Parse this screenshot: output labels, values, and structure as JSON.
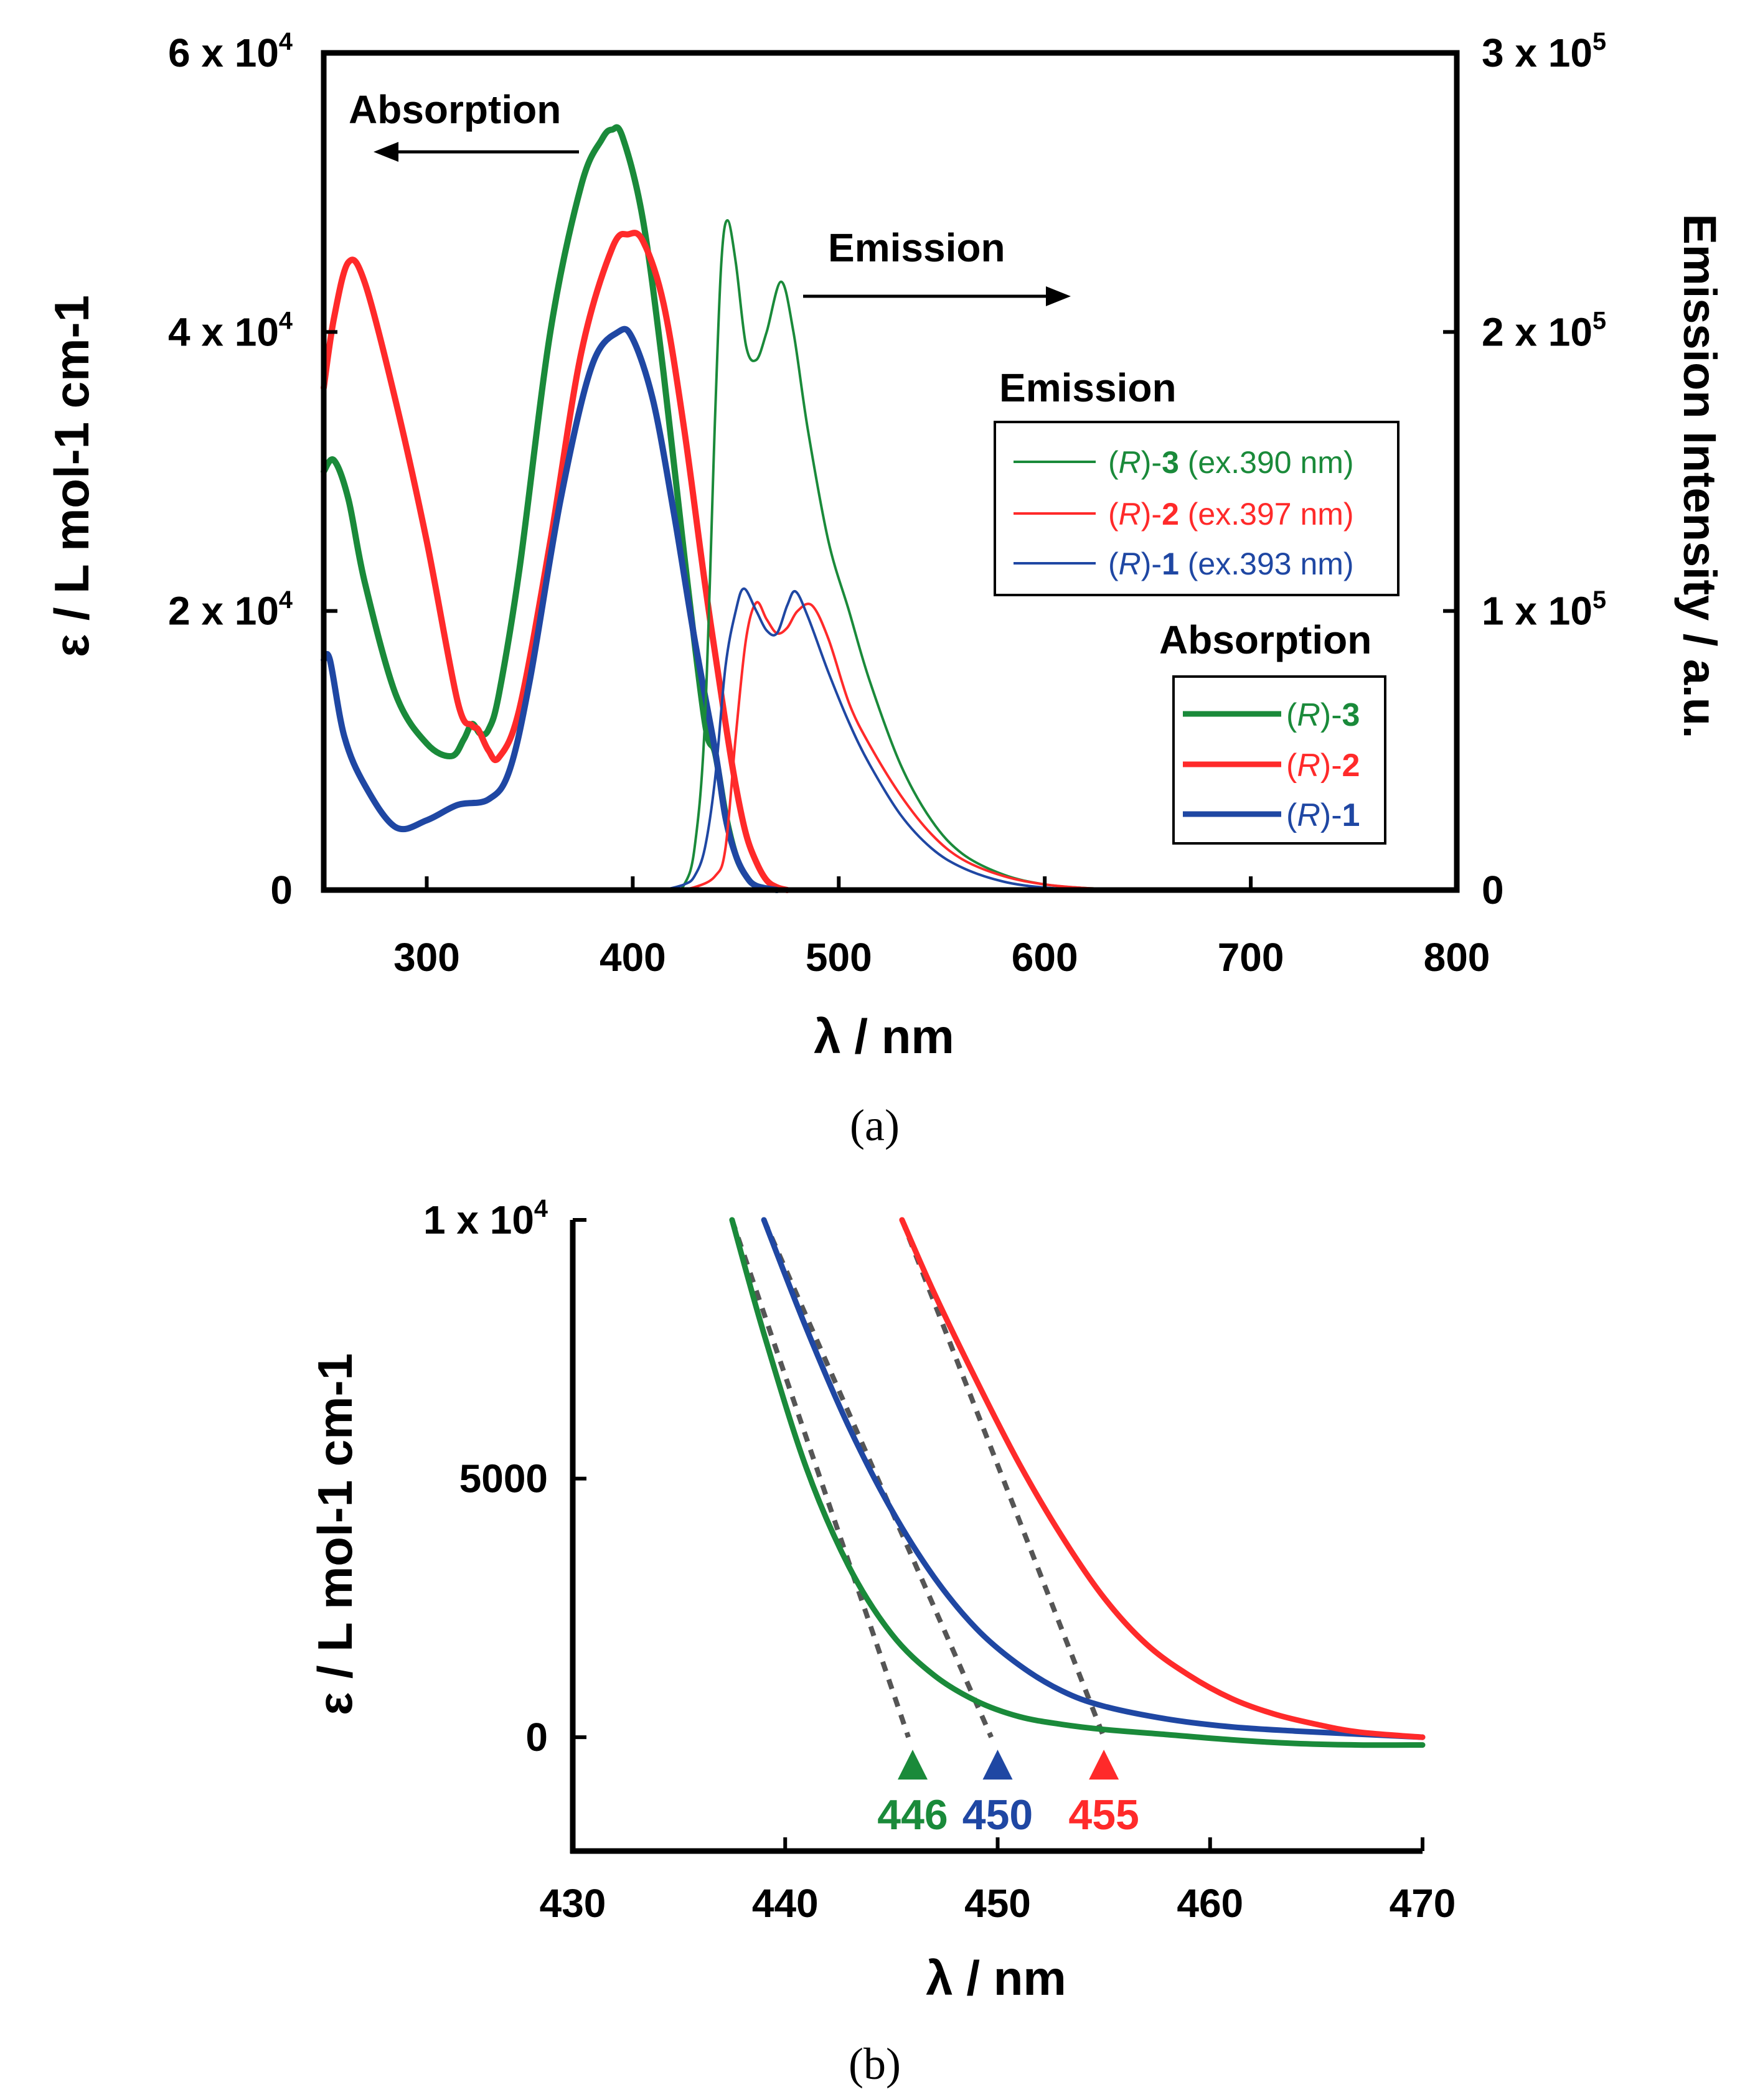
{
  "chart_data": [
    {
      "panel_label": "(a)",
      "type": "line",
      "xlabel": "λ  / nm",
      "ylabel_left": "ε / L mol-1 cm-1",
      "ylabel_right": "Emission Intensity / a.u.",
      "xlim": [
        250,
        800
      ],
      "ylim_left": [
        0,
        60000
      ],
      "ylim_right": [
        0,
        300000
      ],
      "x_ticks": [
        300,
        400,
        500,
        600,
        700,
        800
      ],
      "x_tick_labels": [
        "300",
        "400",
        "500",
        "600",
        "700",
        "800"
      ],
      "y_left_ticks": [
        0,
        20000,
        40000,
        60000
      ],
      "y_left_tick_labels": [
        {
          "base": "0",
          "exp": ""
        },
        {
          "base": "2 x 10",
          "exp": "4"
        },
        {
          "base": "4 x 10",
          "exp": "4"
        },
        {
          "base": "6 x 10",
          "exp": "4"
        }
      ],
      "y_right_ticks": [
        0,
        100000,
        200000,
        300000
      ],
      "y_right_tick_labels": [
        {
          "base": "0",
          "exp": ""
        },
        {
          "base": "1 x 10",
          "exp": "5"
        },
        {
          "base": "2 x 10",
          "exp": "5"
        },
        {
          "base": "3 x 10",
          "exp": "5"
        }
      ],
      "annotations": {
        "absorption_arrow": "Absorption",
        "emission_arrow": "Emission"
      },
      "absorption_series": [
        {
          "name": "(R)-3",
          "color": "#1a8a3a",
          "x": [
            250,
            255,
            262,
            270,
            285,
            300,
            312,
            318,
            322,
            326,
            330,
            335,
            345,
            360,
            375,
            385,
            390,
            395,
            405,
            415,
            425,
            435,
            440,
            445,
            450,
            455,
            460,
            470
          ],
          "y": [
            30000,
            30800,
            28000,
            22000,
            14000,
            10500,
            9600,
            10800,
            11900,
            11200,
            11500,
            14000,
            23000,
            40000,
            50500,
            53800,
            54500,
            54000,
            48000,
            37000,
            24000,
            12000,
            9800,
            5500,
            2500,
            1000,
            300,
            0
          ]
        },
        {
          "name": "(R)-2",
          "color": "#ff2a2a",
          "x": [
            250,
            255,
            262,
            270,
            285,
            300,
            315,
            322,
            325,
            330,
            335,
            345,
            360,
            375,
            390,
            398,
            405,
            415,
            425,
            435,
            445,
            450,
            455,
            460,
            465,
            470,
            475
          ],
          "y": [
            36000,
            41000,
            45000,
            43500,
            35000,
            25000,
            13500,
            11800,
            11500,
            10000,
            9500,
            13000,
            25000,
            38500,
            46000,
            47000,
            46500,
            42000,
            33000,
            22000,
            12000,
            7500,
            4000,
            2000,
            700,
            200,
            0
          ]
        },
        {
          "name": "(R)-1",
          "color": "#1f47a3",
          "x": [
            250,
            253,
            260,
            270,
            285,
            300,
            315,
            330,
            340,
            350,
            365,
            380,
            393,
            400,
            410,
            420,
            430,
            440,
            445,
            450,
            455,
            460,
            470
          ],
          "y": [
            16500,
            16500,
            11000,
            7500,
            4500,
            5000,
            6100,
            6500,
            8500,
            15000,
            28000,
            37500,
            40000,
            39500,
            35000,
            27000,
            18000,
            10000,
            5200,
            2500,
            1000,
            300,
            0
          ]
        }
      ],
      "emission_series": [
        {
          "name": "(R)-3",
          "excitation": "(ex.390 nm)",
          "color": "#1a8a3a",
          "x": [
            410,
            420,
            425,
            430,
            435,
            440,
            443,
            446,
            450,
            455,
            460,
            465,
            472,
            478,
            485,
            495,
            505,
            515,
            530,
            545,
            560,
            580,
            600,
            620,
            640,
            660
          ],
          "y": [
            0,
            0,
            2000,
            15000,
            60000,
            170000,
            225000,
            240000,
            225000,
            195000,
            190000,
            200000,
            218000,
            200000,
            165000,
            125000,
            100000,
            75000,
            45000,
            25000,
            13000,
            5500,
            2000,
            700,
            200,
            0
          ]
        },
        {
          "name": "(R)-2",
          "excitation": "(ex.397 nm)",
          "color": "#ff2a2a",
          "x": [
            420,
            430,
            440,
            445,
            450,
            455,
            460,
            465,
            470,
            475,
            480,
            487,
            495,
            505,
            515,
            530,
            545,
            560,
            580,
            600,
            620,
            640,
            660
          ],
          "y": [
            0,
            1000,
            5000,
            15000,
            55000,
            90000,
            103000,
            97000,
            92000,
            94000,
            100000,
            102000,
            90000,
            67000,
            52000,
            34000,
            20000,
            11000,
            5000,
            2000,
            700,
            200,
            0
          ]
        },
        {
          "name": "(R)-1",
          "excitation": "(ex.393 nm)",
          "color": "#1f47a3",
          "x": [
            415,
            425,
            430,
            435,
            440,
            445,
            450,
            454,
            460,
            465,
            470,
            475,
            479,
            485,
            495,
            505,
            515,
            530,
            545,
            560,
            580,
            600,
            620,
            640
          ],
          "y": [
            0,
            2000,
            5000,
            15000,
            40000,
            80000,
            100000,
            108000,
            100000,
            93000,
            92000,
            102000,
            107000,
            98000,
            78000,
            60000,
            45000,
            27000,
            15000,
            8000,
            3000,
            900,
            200,
            0
          ]
        }
      ],
      "legend_emission": {
        "title": "Emission",
        "entries": [
          {
            "prefix": "(",
            "italic": "R",
            "mid": ")-",
            "num": "3",
            "suffix": " (ex.390 nm)"
          },
          {
            "prefix": "(",
            "italic": "R",
            "mid": ")-",
            "num": "2",
            "suffix": " (ex.397 nm)"
          },
          {
            "prefix": "(",
            "italic": "R",
            "mid": ")-",
            "num": "1",
            "suffix": " (ex.393 nm)"
          }
        ]
      },
      "legend_absorption": {
        "title": "Absorption",
        "entries": [
          {
            "prefix": "(",
            "italic": "R",
            "mid": ")-",
            "num": "3"
          },
          {
            "prefix": "(",
            "italic": "R",
            "mid": ")-",
            "num": "2"
          },
          {
            "prefix": "(",
            "italic": "R",
            "mid": ")-",
            "num": "1"
          }
        ]
      }
    },
    {
      "panel_label": "(b)",
      "type": "line",
      "xlabel": "λ  / nm",
      "ylabel": "ε / L mol-1 cm-1",
      "xlim": [
        430,
        470
      ],
      "ylim": [
        -2200,
        10000
      ],
      "x_ticks": [
        430,
        440,
        450,
        460,
        470
      ],
      "x_tick_labels": [
        "430",
        "440",
        "450",
        "460",
        "470"
      ],
      "y_ticks": [
        0,
        5000,
        10000
      ],
      "y_tick_labels": [
        {
          "base": "0",
          "exp": ""
        },
        {
          "base": "5000",
          "exp": ""
        },
        {
          "base": "1 x 10",
          "exp": "4"
        }
      ],
      "series": [
        {
          "name": "(R)-3",
          "color": "#1a8a3a",
          "x": [
            437.5,
            439,
            441,
            443,
            445,
            447,
            449,
            451,
            453,
            455,
            458,
            461,
            464,
            467,
            470
          ],
          "y": [
            10000,
            7800,
            5200,
            3300,
            2000,
            1200,
            700,
            400,
            250,
            150,
            50,
            -50,
            -120,
            -150,
            -150
          ]
        },
        {
          "name": "(R)-1",
          "color": "#1f47a3",
          "x": [
            439,
            441,
            443,
            445,
            447,
            449,
            451,
            453,
            455,
            458,
            461,
            464,
            467,
            470
          ],
          "y": [
            10000,
            7900,
            6000,
            4400,
            3100,
            2100,
            1400,
            900,
            600,
            350,
            200,
            120,
            60,
            0
          ]
        },
        {
          "name": "(R)-2",
          "color": "#ff2a2a",
          "x": [
            445.5,
            447,
            449,
            451,
            453,
            455,
            457,
            459,
            461,
            463,
            465,
            467,
            470
          ],
          "y": [
            10000,
            8600,
            6900,
            5300,
            3900,
            2700,
            1800,
            1200,
            750,
            450,
            250,
            100,
            0
          ]
        }
      ],
      "tangent_lines": [
        {
          "series": "(R)-3",
          "x": [
            437.5,
            445.8
          ],
          "y": [
            10000,
            0
          ]
        },
        {
          "series": "(R)-1",
          "x": [
            439,
            449.7
          ],
          "y": [
            10000,
            0
          ]
        },
        {
          "series": "(R)-2",
          "x": [
            445.5,
            455
          ],
          "y": [
            10000,
            0
          ]
        }
      ],
      "onset_markers": [
        {
          "x": 446,
          "label": "446",
          "color": "#1a8a3a"
        },
        {
          "x": 450,
          "label": "450",
          "color": "#1f47a3"
        },
        {
          "x": 455,
          "label": "455",
          "color": "#ff2a2a"
        }
      ]
    }
  ]
}
